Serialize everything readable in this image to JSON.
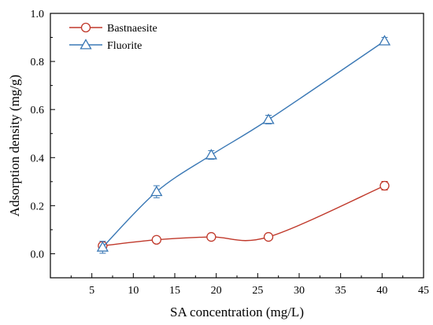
{
  "chart_data": {
    "type": "line",
    "xlabel": "SA concentration (mg/L)",
    "ylabel": "Adsorption density (mg/g)",
    "xlim": [
      0,
      45
    ],
    "ylim": [
      -0.1,
      1.0
    ],
    "xticks": [
      5,
      10,
      15,
      20,
      25,
      30,
      35,
      40,
      45
    ],
    "yticks": [
      0.0,
      0.2,
      0.4,
      0.6,
      0.8,
      1.0
    ],
    "xtick_labels": [
      "5",
      "10",
      "15",
      "20",
      "25",
      "30",
      "35",
      "40",
      "45"
    ],
    "ytick_labels": [
      "0.0",
      "0.2",
      "0.4",
      "0.6",
      "0.8",
      "1.0"
    ],
    "grid": false,
    "legend": "top-left",
    "series": [
      {
        "name": "Bastnaesite",
        "color": "#c0392b",
        "marker": "circle",
        "x": [
          6.3,
          12.8,
          19.4,
          26.3,
          40.3
        ],
        "y": [
          0.033,
          0.058,
          0.07,
          0.07,
          0.283
        ],
        "err": [
          0.01,
          0.01,
          0.012,
          0.01,
          0.018
        ]
      },
      {
        "name": "Fluorite",
        "color": "#3a78b5",
        "marker": "triangle",
        "x": [
          6.3,
          12.8,
          19.4,
          26.3,
          40.3
        ],
        "y": [
          0.027,
          0.258,
          0.411,
          0.558,
          0.885
        ],
        "err": [
          0.025,
          0.025,
          0.018,
          0.018,
          0.015
        ]
      }
    ]
  }
}
